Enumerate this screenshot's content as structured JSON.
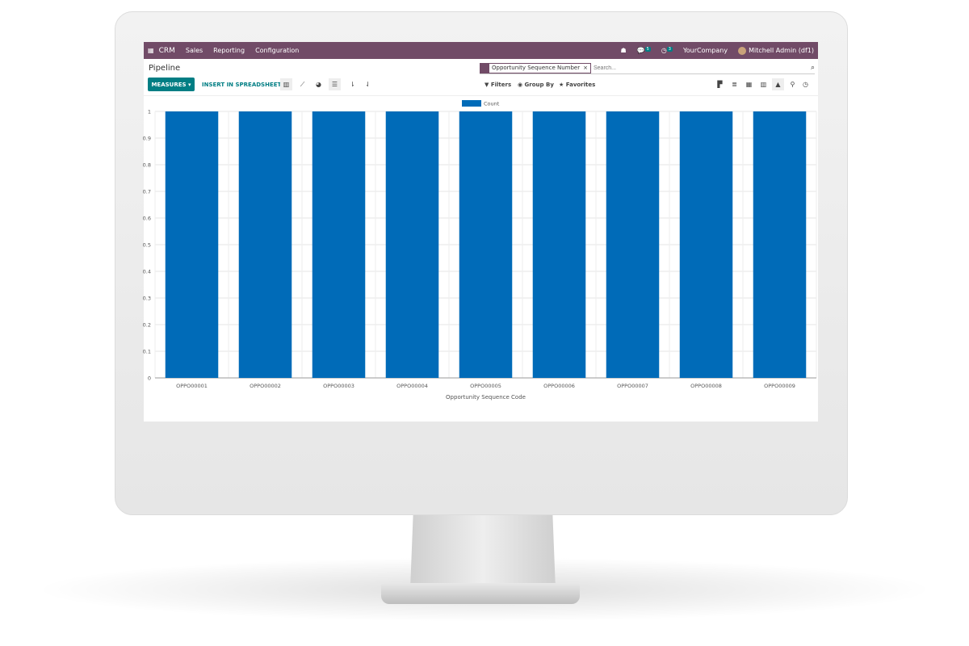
{
  "nav": {
    "app": "CRM",
    "menus": [
      "Sales",
      "Reporting",
      "Configuration"
    ],
    "messages_count": "5",
    "activities_count": "3",
    "company": "YourCompany",
    "user": "Mitchell Admin (df1)"
  },
  "page": {
    "title": "Pipeline"
  },
  "search": {
    "facet": "Opportunity Sequence Number",
    "placeholder": "Search..."
  },
  "toolbar": {
    "measures": "MEASURES ▾",
    "insert": "INSERT IN SPREADSHEET",
    "filters": "Filters",
    "group_by": "Group By",
    "favorites": "Favorites"
  },
  "colors": {
    "nav": "#714b67",
    "accent": "#017e84",
    "bar": "#006bb8"
  },
  "chart_data": {
    "type": "bar",
    "categories": [
      "OPPO00001",
      "OPPO00002",
      "OPPO00003",
      "OPPO00004",
      "OPPO00005",
      "OPPO00006",
      "OPPO00007",
      "OPPO00008",
      "OPPO00009"
    ],
    "series": [
      {
        "name": "Count",
        "values": [
          1,
          1,
          1,
          1,
          1,
          1,
          1,
          1,
          1
        ]
      }
    ],
    "xlabel": "Opportunity Sequence Code",
    "ylabel": "",
    "ylim": [
      0,
      1
    ],
    "yticks": [
      "0",
      "0.1",
      "0.2",
      "0.3",
      "0.4",
      "0.5",
      "0.6",
      "0.7",
      "0.8",
      "0.9",
      "1"
    ],
    "grid": true,
    "legend": "top-center"
  }
}
